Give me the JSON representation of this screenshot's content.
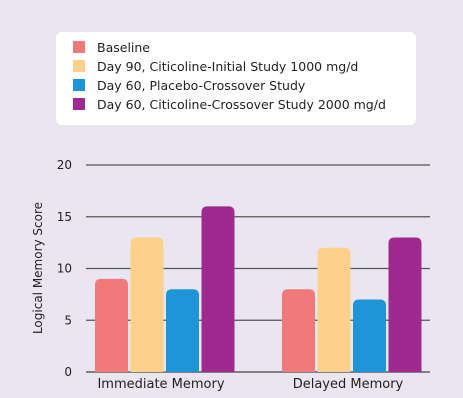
{
  "chart_data": {
    "type": "bar",
    "categories": [
      "Immediate Memory",
      "Delayed Memory"
    ],
    "series": [
      {
        "name": "Baseline",
        "values": [
          9,
          8
        ],
        "color": "#f07a7a"
      },
      {
        "name": "Day 90, Citicoline-Initial Study 1000 mg/d",
        "values": [
          13,
          12
        ],
        "color": "#fdd08c"
      },
      {
        "name": "Day 60, Placebo-Crossover Study",
        "values": [
          8,
          7
        ],
        "color": "#1e95d8"
      },
      {
        "name": "Day 60, Citicoline-Crossover Study 2000 mg/d",
        "values": [
          16,
          13
        ],
        "color": "#9e2a8f"
      }
    ],
    "ylabel": "Logical Memory Score",
    "ylim": [
      0,
      20
    ],
    "yticks": [
      0,
      5,
      10,
      15,
      20
    ],
    "grid": true,
    "legend_position": "top"
  }
}
